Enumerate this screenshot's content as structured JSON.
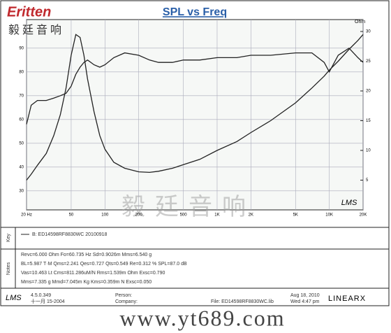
{
  "logo": "Eritten",
  "logo_cn": "毅廷音响",
  "chart_data": {
    "type": "line",
    "title": "SPL vs Freq",
    "y2_label": "Ohm",
    "x": [
      20,
      22,
      25,
      30,
      35,
      40,
      45,
      50,
      55,
      60,
      65,
      70,
      80,
      90,
      100,
      120,
      150,
      200,
      250,
      300,
      400,
      500,
      700,
      1000,
      1500,
      2000,
      3000,
      5000,
      7000,
      9000,
      10000,
      12000,
      15000,
      18000,
      20000
    ],
    "xlog": true,
    "xlim": [
      20,
      20000
    ],
    "xticks": [
      {
        "value": 20,
        "label": "20 Hz"
      },
      50,
      100,
      200,
      500,
      {
        "value": 1000,
        "label": "1K"
      },
      {
        "value": 2000,
        "label": "2K"
      },
      {
        "value": 5000,
        "label": "5K"
      },
      {
        "value": 10000,
        "label": "10K"
      },
      {
        "value": 20000,
        "label": "20K"
      }
    ],
    "ylim": [
      22,
      102
    ],
    "yticks": [
      30,
      40,
      50,
      60,
      70,
      80,
      90
    ],
    "y2lim": [
      0,
      32
    ],
    "y2ticks": [
      5,
      10,
      15,
      20,
      25,
      30
    ],
    "grid": true,
    "series": [
      {
        "color": "#222222",
        "axis": "y",
        "values": [
          58,
          66,
          68,
          68,
          69,
          70,
          71,
          74,
          79,
          82,
          84,
          85,
          83,
          82,
          83,
          86,
          88,
          87,
          85,
          84,
          84,
          85,
          85,
          86,
          86,
          87,
          87,
          88,
          88,
          84,
          80,
          87,
          90,
          86,
          84
        ]
      },
      {
        "color": "#222222",
        "axis": "y2",
        "values": [
          5,
          6,
          7.5,
          9.5,
          12.5,
          16,
          20.5,
          26,
          29.5,
          29,
          26,
          22,
          16.5,
          12.5,
          10.2,
          8,
          7,
          6.4,
          6.3,
          6.5,
          7,
          7.6,
          8.5,
          10,
          11.5,
          13,
          15,
          18,
          20.5,
          22.5,
          23.5,
          25,
          27,
          28.5,
          29.5
        ]
      }
    ]
  },
  "watermark": "毅廷音响",
  "brand": "LMS",
  "key_label": "Key",
  "legend_text": "B: ED14598RF8830WC    20100918",
  "notes_label": "Notes",
  "notes": [
    "Revc=6.000 Ohm  Fo=60.735 Hz  Sd=0.9026m  Mms=6.540 g",
    "BL=5.987 T·M  Qms=2.241  Qes=0.727  Qts=0.549  Re=0.312 %  SPL=87.0 dB",
    "Vas=10.463 Lt  Cms=811.286uM/N  Rms=1.539m Ohm  Exsc=0.790",
    "Mms=7.335 g  Mmd=7.045m Kg  Kms=0.359m N  Exsc=0.050"
  ],
  "footer": {
    "version": "4.5.0.349",
    "date_cn": "十一月 15-2004",
    "person": "Person:",
    "company": "Company:",
    "file": "File: ED14598RF8830WC.lib",
    "date": "Aug 18, 2010",
    "time": "Wed 4:47 pm",
    "linearx": "LINEARX"
  },
  "url": "www.yt689.com"
}
